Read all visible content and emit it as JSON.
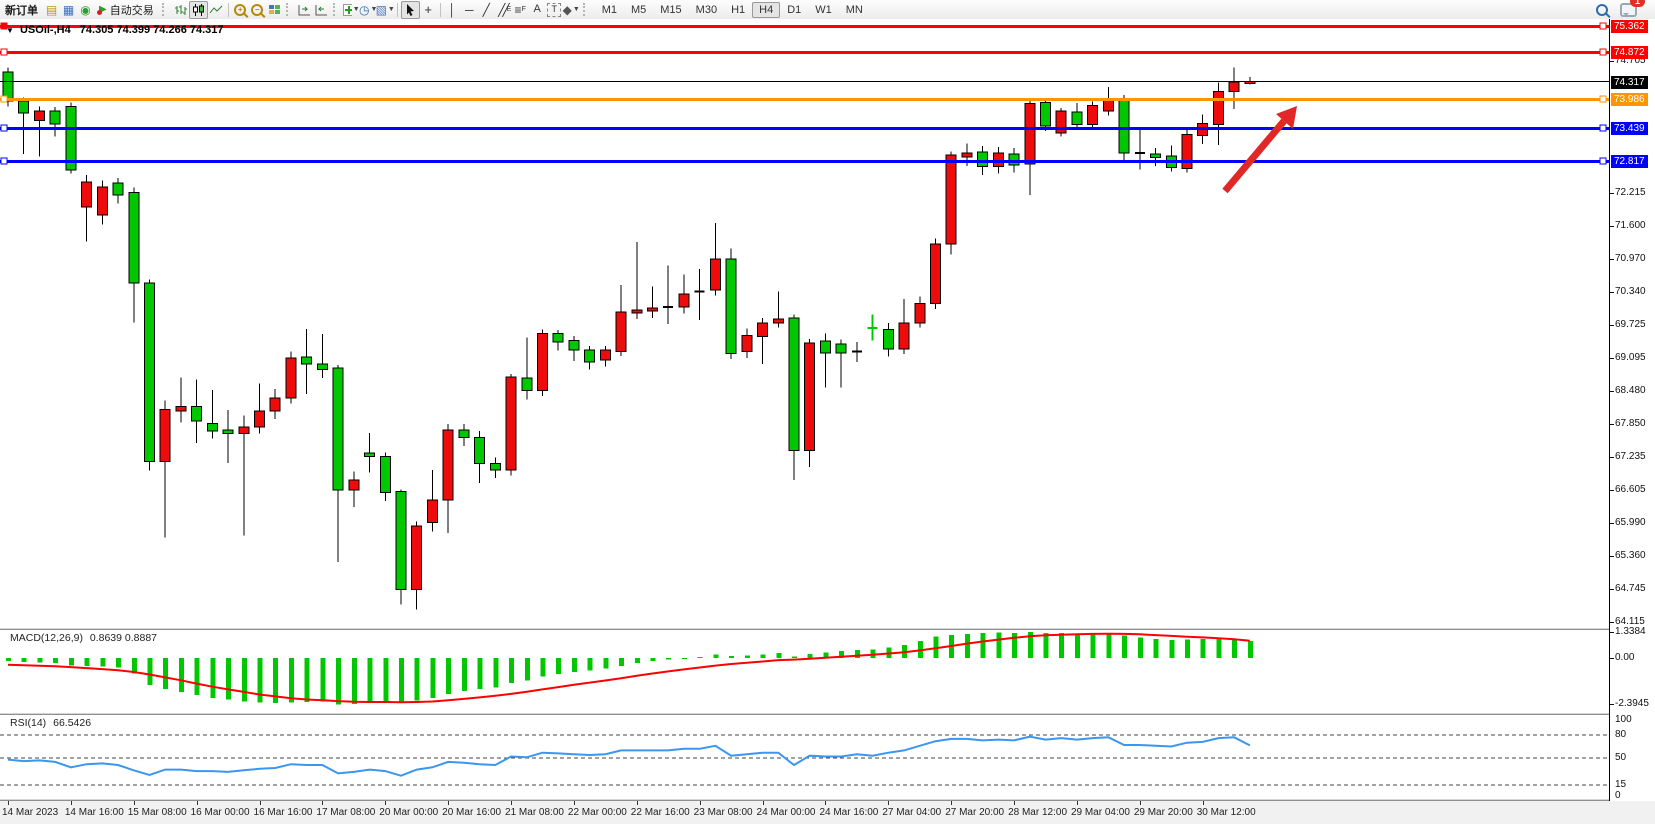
{
  "toolbar": {
    "new_order_label": "新订单",
    "autotrading_label": "自动交易",
    "timeframes": [
      "M1",
      "M5",
      "M15",
      "M30",
      "H1",
      "H4",
      "D1",
      "W1",
      "MN"
    ],
    "active_timeframe": "H4",
    "notification_badge": "1",
    "icons": [
      "market-watch-icon",
      "data-window-icon",
      "navigator-icon",
      "autotrading-icon",
      "bar-chart-icon",
      "candlestick-chart-icon",
      "line-chart-icon",
      "zoom-in-icon",
      "zoom-out-icon",
      "tile-windows-icon",
      "shift-chart-icon",
      "auto-scroll-icon",
      "add-indicator-icon",
      "periods-icon",
      "templates-icon",
      "cursor-icon",
      "crosshair-icon",
      "vertical-line-icon",
      "horizontal-line-icon",
      "trendline-icon",
      "channel-icon",
      "fibonacci-icon",
      "text-icon",
      "label-icon",
      "shapes-icon",
      "search-icon",
      "chat-icon"
    ]
  },
  "chart": {
    "title": {
      "symbol": "USOil-,H4",
      "ohlc": "74.305 74.399 74.266 74.317"
    },
    "colors": {
      "bull": "#ee0b0b",
      "bear": "#00c800",
      "wick": "#000000",
      "red_line": "#ff0000",
      "orange_line": "#ff9500",
      "blue_line": "#0000ff",
      "price_line": "#000000",
      "arrow": "#e02828"
    },
    "hlines": [
      {
        "label": "75.362",
        "value": 75.362,
        "color": "#ff0000",
        "left_marker": "filled"
      },
      {
        "label": "74.872",
        "value": 74.872,
        "color": "#ff0000",
        "left_marker": "hollow"
      },
      {
        "label": "73.986",
        "value": 73.986,
        "color": "#ff9500",
        "left_marker": "hollow"
      },
      {
        "label": "73.439",
        "value": 73.439,
        "color": "#0000ff",
        "left_marker": "hollow"
      },
      {
        "label": "72.817",
        "value": 72.817,
        "color": "#0000ff",
        "left_marker": "hollow"
      }
    ],
    "price_line": {
      "label": "74.317",
      "value": 74.317,
      "color": "#000000"
    },
    "y_ticks": [
      {
        "label": "74.705",
        "value": 74.705
      },
      {
        "label": "72.215",
        "value": 72.215
      },
      {
        "label": "71.600",
        "value": 71.6
      },
      {
        "label": "70.970",
        "value": 70.97
      },
      {
        "label": "70.340",
        "value": 70.34
      },
      {
        "label": "69.725",
        "value": 69.725
      },
      {
        "label": "69.095",
        "value": 69.095
      },
      {
        "label": "68.480",
        "value": 68.48
      },
      {
        "label": "67.850",
        "value": 67.85
      },
      {
        "label": "67.235",
        "value": 67.235
      },
      {
        "label": "66.605",
        "value": 66.605
      },
      {
        "label": "65.990",
        "value": 65.99
      },
      {
        "label": "65.360",
        "value": 65.36
      },
      {
        "label": "64.745",
        "value": 64.745
      },
      {
        "label": "64.115",
        "value": 64.115
      }
    ],
    "candles": [
      [
        74.5,
        74.58,
        73.85,
        73.95
      ],
      [
        73.95,
        74.02,
        72.95,
        73.72
      ],
      [
        73.58,
        73.85,
        72.9,
        73.76
      ],
      [
        73.76,
        73.84,
        73.28,
        73.52
      ],
      [
        73.85,
        73.92,
        72.58,
        72.65
      ],
      [
        71.95,
        72.55,
        71.3,
        72.42
      ],
      [
        71.8,
        72.45,
        71.62,
        72.33
      ],
      [
        72.4,
        72.5,
        72.02,
        72.18
      ],
      [
        72.22,
        72.32,
        69.77,
        70.52
      ],
      [
        70.52,
        70.58,
        66.98,
        67.15
      ],
      [
        67.15,
        68.3,
        65.71,
        68.13
      ],
      [
        68.1,
        68.73,
        67.88,
        68.19
      ],
      [
        68.19,
        68.7,
        67.5,
        67.91
      ],
      [
        67.87,
        68.5,
        67.58,
        67.72
      ],
      [
        67.74,
        68.12,
        67.12,
        67.68
      ],
      [
        67.68,
        68.02,
        65.75,
        67.8
      ],
      [
        67.8,
        68.62,
        67.68,
        68.1
      ],
      [
        68.1,
        68.52,
        67.95,
        68.35
      ],
      [
        68.35,
        69.22,
        68.24,
        69.1
      ],
      [
        69.12,
        69.65,
        68.42,
        68.99
      ],
      [
        68.99,
        69.55,
        68.72,
        68.88
      ],
      [
        68.91,
        68.97,
        65.25,
        66.61
      ],
      [
        66.61,
        66.96,
        66.29,
        66.8
      ],
      [
        67.31,
        67.69,
        66.94,
        67.24
      ],
      [
        67.24,
        67.32,
        66.4,
        66.56
      ],
      [
        66.58,
        66.62,
        64.45,
        64.73
      ],
      [
        64.73,
        66.02,
        64.36,
        65.93
      ],
      [
        66.0,
        66.99,
        65.83,
        66.42
      ],
      [
        66.42,
        67.86,
        65.8,
        67.74
      ],
      [
        67.74,
        67.86,
        67.44,
        67.6
      ],
      [
        67.6,
        67.72,
        66.74,
        67.11
      ],
      [
        67.11,
        67.22,
        66.84,
        66.99
      ],
      [
        66.99,
        68.8,
        66.88,
        68.74
      ],
      [
        68.72,
        69.49,
        68.32,
        68.49
      ],
      [
        68.49,
        69.64,
        68.38,
        69.56
      ],
      [
        69.56,
        69.63,
        69.24,
        69.4
      ],
      [
        69.43,
        69.52,
        69.04,
        69.25
      ],
      [
        69.25,
        69.33,
        68.88,
        69.03
      ],
      [
        69.06,
        69.33,
        68.94,
        69.25
      ],
      [
        69.22,
        70.48,
        69.14,
        69.97
      ],
      [
        69.95,
        71.29,
        69.84,
        70.01
      ],
      [
        69.99,
        70.45,
        69.86,
        70.04
      ],
      [
        70.06,
        70.85,
        69.74,
        70.06
      ],
      [
        70.06,
        70.68,
        69.94,
        70.31
      ],
      [
        70.36,
        70.78,
        69.82,
        70.36
      ],
      [
        70.38,
        71.65,
        70.28,
        70.97
      ],
      [
        70.97,
        71.17,
        69.08,
        69.19
      ],
      [
        69.22,
        69.66,
        69.1,
        69.53
      ],
      [
        69.51,
        69.86,
        68.99,
        69.76
      ],
      [
        69.76,
        70.36,
        69.68,
        69.84
      ],
      [
        69.86,
        69.92,
        66.8,
        67.36
      ],
      [
        67.36,
        69.46,
        67.04,
        69.38
      ],
      [
        69.42,
        69.56,
        68.54,
        69.2
      ],
      [
        69.37,
        69.45,
        68.54,
        69.2
      ],
      [
        69.22,
        69.4,
        69.03,
        69.22
      ],
      [
        69.67,
        69.92,
        69.43,
        69.67
      ],
      [
        69.64,
        69.76,
        69.13,
        69.27
      ],
      [
        69.27,
        70.21,
        69.18,
        69.76
      ],
      [
        69.76,
        70.26,
        69.68,
        70.13
      ],
      [
        70.13,
        71.36,
        70.03,
        71.25
      ],
      [
        71.25,
        73.0,
        71.05,
        72.93
      ],
      [
        72.89,
        73.15,
        72.72,
        72.97
      ],
      [
        72.99,
        73.1,
        72.55,
        72.71
      ],
      [
        72.71,
        73.08,
        72.58,
        72.97
      ],
      [
        72.95,
        73.06,
        72.6,
        72.74
      ],
      [
        72.76,
        73.95,
        72.18,
        73.9
      ],
      [
        73.92,
        73.97,
        73.38,
        73.48
      ],
      [
        73.35,
        73.82,
        73.28,
        73.76
      ],
      [
        73.74,
        73.91,
        73.44,
        73.51
      ],
      [
        73.51,
        73.94,
        73.45,
        73.87
      ],
      [
        73.76,
        74.21,
        73.68,
        73.98
      ],
      [
        73.99,
        74.06,
        72.8,
        72.97
      ],
      [
        72.97,
        73.44,
        72.66,
        72.97
      ],
      [
        72.95,
        73.06,
        72.72,
        72.88
      ],
      [
        72.91,
        73.11,
        72.62,
        72.7
      ],
      [
        72.68,
        73.4,
        72.6,
        73.32
      ],
      [
        73.3,
        73.7,
        73.14,
        73.53
      ],
      [
        73.51,
        74.3,
        73.12,
        74.13
      ],
      [
        74.13,
        74.58,
        73.8,
        74.31
      ],
      [
        74.305,
        74.399,
        74.266,
        74.317
      ]
    ],
    "doji_overrides": {
      "43": "K",
      "45": "K",
      "55": "K",
      "56": "E",
      "73": "K"
    }
  },
  "macd": {
    "title": "MACD(12,26,9)",
    "values": "0.8639 0.8887",
    "scale": [
      {
        "label": "1.3384",
        "value": 1.3384
      },
      {
        "label": "0.00",
        "value": 0
      },
      {
        "label": "-2.3945",
        "value": -2.3945
      }
    ],
    "hist": [
      -0.15,
      -0.2,
      -0.22,
      -0.25,
      -0.38,
      -0.42,
      -0.45,
      -0.5,
      -0.8,
      -1.4,
      -1.6,
      -1.75,
      -1.9,
      -2.05,
      -2.15,
      -2.25,
      -2.3,
      -2.32,
      -2.3,
      -2.28,
      -2.25,
      -2.39,
      -2.36,
      -2.28,
      -2.22,
      -2.3,
      -2.2,
      -2.05,
      -1.85,
      -1.7,
      -1.6,
      -1.52,
      -1.3,
      -1.15,
      -0.95,
      -0.82,
      -0.72,
      -0.65,
      -0.55,
      -0.4,
      -0.25,
      -0.15,
      -0.08,
      -0.02,
      0.05,
      0.18,
      0.1,
      0.12,
      0.18,
      0.25,
      0.08,
      0.2,
      0.28,
      0.35,
      0.42,
      0.45,
      0.55,
      0.68,
      0.88,
      1.1,
      1.18,
      1.25,
      1.3,
      1.32,
      1.3,
      1.334,
      1.3,
      1.28,
      1.25,
      1.28,
      1.3,
      1.15,
      1.05,
      0.98,
      0.92,
      0.95,
      0.98,
      1.02,
      1.0,
      0.864
    ],
    "signal": [
      -0.35,
      -0.37,
      -0.4,
      -0.43,
      -0.47,
      -0.52,
      -0.57,
      -0.63,
      -0.72,
      -0.85,
      -1.0,
      -1.15,
      -1.32,
      -1.48,
      -1.62,
      -1.75,
      -1.88,
      -1.98,
      -2.07,
      -2.14,
      -2.18,
      -2.22,
      -2.26,
      -2.27,
      -2.27,
      -2.28,
      -2.27,
      -2.24,
      -2.18,
      -2.11,
      -2.03,
      -1.95,
      -1.85,
      -1.74,
      -1.62,
      -1.5,
      -1.38,
      -1.27,
      -1.16,
      -1.04,
      -0.92,
      -0.8,
      -0.69,
      -0.59,
      -0.49,
      -0.39,
      -0.31,
      -0.24,
      -0.18,
      -0.11,
      -0.08,
      -0.04,
      0.01,
      0.06,
      0.12,
      0.17,
      0.23,
      0.3,
      0.39,
      0.5,
      0.62,
      0.74,
      0.85,
      0.95,
      1.04,
      1.12,
      1.17,
      1.2,
      1.22,
      1.24,
      1.25,
      1.24,
      1.22,
      1.18,
      1.14,
      1.1,
      1.06,
      1.02,
      0.97,
      0.889
    ],
    "hist_color": "#00c800",
    "signal_color": "#ff0000"
  },
  "rsi": {
    "title": "RSI(14)",
    "value": "66.5426",
    "levels": [
      {
        "label": "100",
        "value": 100,
        "dashed": false
      },
      {
        "label": "80",
        "value": 80,
        "dashed": true
      },
      {
        "label": "50",
        "value": 50,
        "dashed": true
      },
      {
        "label": "15",
        "value": 15,
        "dashed": true
      },
      {
        "label": "0",
        "value": 0,
        "dashed": false
      }
    ],
    "series": [
      48,
      46,
      47,
      45,
      38,
      42,
      43,
      41,
      34,
      28,
      35,
      35,
      33,
      33,
      32,
      34,
      36,
      37,
      42,
      41,
      41,
      30,
      32,
      35,
      33,
      27,
      35,
      38,
      45,
      44,
      42,
      41,
      52,
      51,
      57,
      56,
      55,
      54,
      55,
      60,
      60,
      60,
      60,
      62,
      62,
      66,
      53,
      55,
      57,
      57,
      41,
      53,
      52,
      52,
      55,
      53,
      57,
      60,
      66,
      72,
      75,
      75,
      73,
      74,
      73,
      78,
      74,
      76,
      74,
      76,
      77,
      67,
      67,
      66,
      65,
      70,
      71,
      76,
      77,
      66.54
    ],
    "line_color": "#3a96f0"
  },
  "time_axis": [
    "14 Mar 2023",
    "14 Mar 16:00",
    "15 Mar 08:00",
    "16 Mar 00:00",
    "16 Mar 16:00",
    "17 Mar 08:00",
    "20 Mar 00:00",
    "20 Mar 16:00",
    "21 Mar 08:00",
    "22 Mar 00:00",
    "22 Mar 16:00",
    "23 Mar 08:00",
    "24 Mar 00:00",
    "24 Mar 16:00",
    "27 Mar 04:00",
    "27 Mar 20:00",
    "28 Mar 12:00",
    "29 Mar 04:00",
    "29 Mar 20:00",
    "30 Mar 12:00"
  ]
}
